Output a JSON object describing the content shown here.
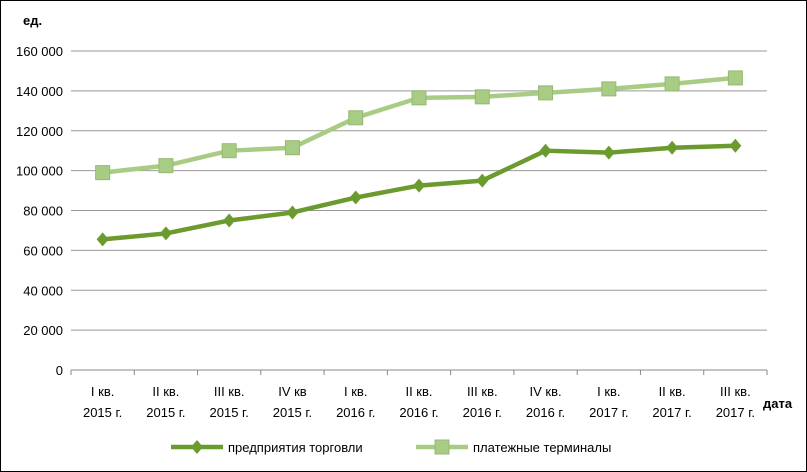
{
  "chart_data": {
    "type": "line",
    "ylabel": "ед.",
    "xlabel": "дата",
    "ylim": [
      0,
      160000
    ],
    "yticks": [
      0,
      20000,
      40000,
      60000,
      80000,
      100000,
      120000,
      140000,
      160000
    ],
    "ytick_labels": [
      "0",
      "20 000",
      "40 000",
      "60 000",
      "80 000",
      "100 000",
      "120 000",
      "140 000",
      "160 000"
    ],
    "grid": true,
    "legend_position": "bottom",
    "categories": [
      [
        "I кв.",
        "2015 г."
      ],
      [
        "II кв.",
        "2015 г."
      ],
      [
        "III кв.",
        "2015 г."
      ],
      [
        "IV кв",
        "2015 г."
      ],
      [
        "I кв.",
        "2016 г."
      ],
      [
        "II кв.",
        "2016 г."
      ],
      [
        "III кв.",
        "2016 г."
      ],
      [
        "IV кв.",
        "2016 г."
      ],
      [
        "I кв.",
        "2017 г."
      ],
      [
        "II кв.",
        "2017 г."
      ],
      [
        "III кв.",
        "2017 г."
      ]
    ],
    "series": [
      {
        "name": "предприятия торговли",
        "marker": "diamond",
        "color": "#6b9a2e",
        "values": [
          65500,
          68500,
          75000,
          79000,
          86500,
          92500,
          95000,
          110000,
          109000,
          111500,
          112500
        ]
      },
      {
        "name": "платежные терминалы",
        "marker": "square",
        "color": "#a9cc85",
        "values": [
          99000,
          102500,
          110000,
          111500,
          126500,
          136500,
          137000,
          139000,
          141000,
          143500,
          146500
        ]
      }
    ]
  }
}
